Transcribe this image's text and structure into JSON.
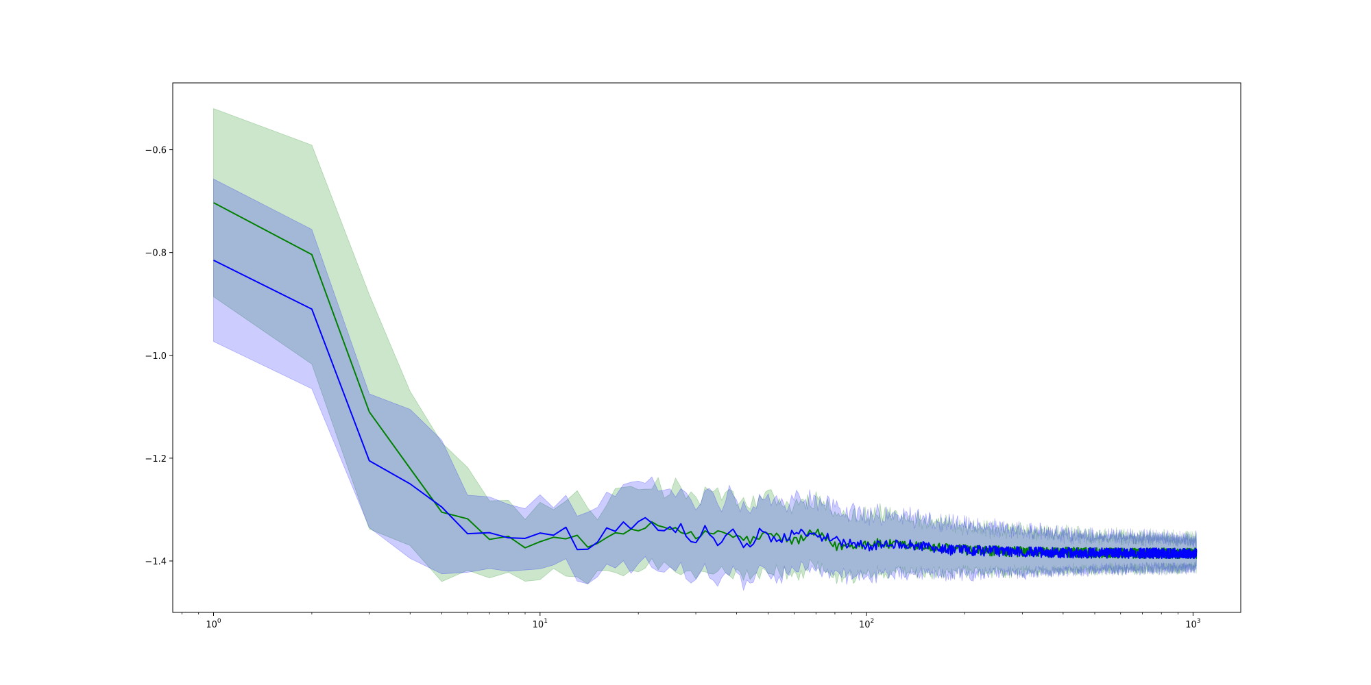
{
  "chart_data": {
    "type": "line",
    "title": "",
    "xlabel": "",
    "ylabel": "",
    "xscale": "log",
    "xlim": [
      0.75,
      1400
    ],
    "ylim": [
      -1.5,
      -0.47
    ],
    "grid": false,
    "legend": "none",
    "x_ticks": [
      {
        "value": 1,
        "base": "10",
        "exp": "0"
      },
      {
        "value": 10,
        "base": "10",
        "exp": "1"
      },
      {
        "value": 100,
        "base": "10",
        "exp": "2"
      },
      {
        "value": 1000,
        "base": "10",
        "exp": "3"
      }
    ],
    "y_ticks": [
      {
        "value": -0.6,
        "label": "−0.6"
      },
      {
        "value": -0.8,
        "label": "−0.8"
      },
      {
        "value": -1.0,
        "label": "−1.0"
      },
      {
        "value": -1.2,
        "label": "−1.2"
      },
      {
        "value": -1.4,
        "label": "−1.4"
      }
    ],
    "series": [
      {
        "color": "#008000",
        "band_color": "#008000",
        "band_opacity": 0.2,
        "x_max": 1024,
        "points": [
          [
            1,
            -0.703
          ],
          [
            2,
            -0.804
          ],
          [
            3,
            -1.11
          ],
          [
            4,
            -1.22
          ],
          [
            5,
            -1.305
          ],
          [
            6,
            -1.318
          ],
          [
            7,
            -1.358
          ],
          [
            8,
            -1.352
          ],
          [
            9,
            -1.365
          ],
          [
            11,
            -1.362
          ],
          [
            13,
            -1.352
          ],
          [
            15,
            -1.375
          ],
          [
            17,
            -1.343
          ],
          [
            19,
            -1.348
          ],
          [
            21,
            -1.332
          ],
          [
            23,
            -1.323
          ],
          [
            25,
            -1.338
          ],
          [
            27,
            -1.335
          ],
          [
            30,
            -1.36
          ],
          [
            33,
            -1.345
          ],
          [
            36,
            -1.342
          ],
          [
            40,
            -1.355
          ],
          [
            45,
            -1.36
          ],
          [
            50,
            -1.348
          ],
          [
            60,
            -1.362
          ],
          [
            70,
            -1.345
          ],
          [
            80,
            -1.372
          ],
          [
            100,
            -1.365
          ],
          [
            130,
            -1.37
          ],
          [
            170,
            -1.375
          ],
          [
            220,
            -1.38
          ],
          [
            300,
            -1.382
          ],
          [
            400,
            -1.383
          ],
          [
            600,
            -1.385
          ],
          [
            1024,
            -1.385
          ]
        ],
        "band_half_width": [
          [
            1,
            0.183
          ],
          [
            2,
            0.213
          ],
          [
            3,
            0.228
          ],
          [
            4,
            0.15
          ],
          [
            5,
            0.135
          ],
          [
            6,
            0.1
          ],
          [
            7,
            0.075
          ],
          [
            8,
            0.07
          ],
          [
            9,
            0.075
          ],
          [
            11,
            0.068
          ],
          [
            13,
            0.075
          ],
          [
            15,
            0.06
          ],
          [
            20,
            0.08
          ],
          [
            30,
            0.075
          ],
          [
            50,
            0.07
          ],
          [
            100,
            0.06
          ],
          [
            200,
            0.045
          ],
          [
            400,
            0.035
          ],
          [
            1024,
            0.028
          ]
        ]
      },
      {
        "color": "#0000ff",
        "band_color": "#0000ff",
        "band_opacity": 0.2,
        "x_max": 1024,
        "points": [
          [
            1,
            -0.815
          ],
          [
            2,
            -0.91
          ],
          [
            3,
            -1.205
          ],
          [
            4,
            -1.25
          ],
          [
            5,
            -1.295
          ],
          [
            6,
            -1.347
          ],
          [
            7,
            -1.345
          ],
          [
            8,
            -1.355
          ],
          [
            9,
            -1.348
          ],
          [
            11,
            -1.353
          ],
          [
            12,
            -1.342
          ],
          [
            13,
            -1.37
          ],
          [
            15,
            -1.368
          ],
          [
            16,
            -1.342
          ],
          [
            18,
            -1.332
          ],
          [
            19,
            -1.342
          ],
          [
            21,
            -1.325
          ],
          [
            24,
            -1.342
          ],
          [
            26,
            -1.342
          ],
          [
            27,
            -1.322
          ],
          [
            29,
            -1.365
          ],
          [
            32,
            -1.335
          ],
          [
            35,
            -1.36
          ],
          [
            40,
            -1.345
          ],
          [
            43,
            -1.375
          ],
          [
            47,
            -1.34
          ],
          [
            50,
            -1.355
          ],
          [
            55,
            -1.358
          ],
          [
            60,
            -1.345
          ],
          [
            70,
            -1.35
          ],
          [
            80,
            -1.36
          ],
          [
            100,
            -1.372
          ],
          [
            130,
            -1.365
          ],
          [
            170,
            -1.378
          ],
          [
            220,
            -1.38
          ],
          [
            300,
            -1.382
          ],
          [
            400,
            -1.384
          ],
          [
            600,
            -1.385
          ],
          [
            1024,
            -1.385
          ]
        ],
        "band_half_width": [
          [
            1,
            0.158
          ],
          [
            2,
            0.155
          ],
          [
            3,
            0.13
          ],
          [
            4,
            0.145
          ],
          [
            5,
            0.13
          ],
          [
            6,
            0.075
          ],
          [
            8,
            0.065
          ],
          [
            10,
            0.065
          ],
          [
            13,
            0.058
          ],
          [
            20,
            0.085
          ],
          [
            30,
            0.08
          ],
          [
            50,
            0.075
          ],
          [
            100,
            0.06
          ],
          [
            200,
            0.048
          ],
          [
            400,
            0.035
          ],
          [
            1024,
            0.028
          ]
        ]
      }
    ]
  }
}
